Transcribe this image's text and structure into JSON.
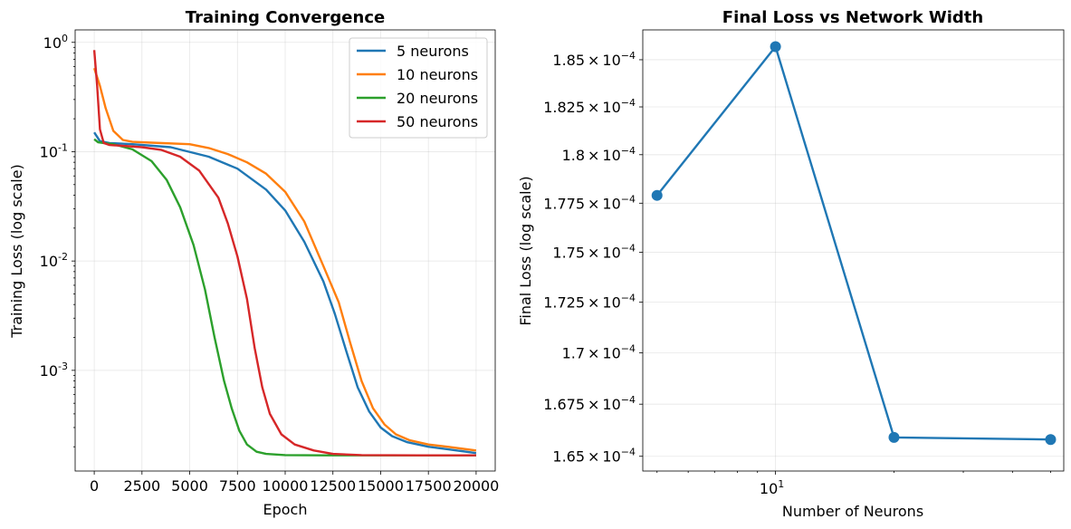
{
  "chart_data": [
    {
      "type": "line",
      "title": "Training Convergence",
      "xlabel": "Epoch",
      "ylabel": "Training Loss (log scale)",
      "xlim": [
        -1000,
        21000
      ],
      "ylim": [
        0.00012,
        1.3
      ],
      "yscale": "log",
      "grid": true,
      "legend_position": "top-right",
      "x_ticks": [
        0,
        2500,
        5000,
        7500,
        10000,
        12500,
        15000,
        17500,
        20000
      ],
      "x_tick_labels": [
        "0",
        "2500",
        "5000",
        "7500",
        "10000",
        "12500",
        "15000",
        "17500",
        "20000"
      ],
      "y_ticks": [
        1,
        0.1,
        0.01,
        0.001
      ],
      "y_tick_labels": [
        {
          "base": "10",
          "exp": "0"
        },
        {
          "base": "10",
          "exp": "-1"
        },
        {
          "base": "10",
          "exp": "-2"
        },
        {
          "base": "10",
          "exp": "-3"
        }
      ],
      "series": [
        {
          "name": "5 neurons",
          "color": "#1f77b4",
          "x": [
            0,
            300,
            800,
            2000,
            4000,
            6000,
            7500,
            9000,
            10000,
            11000,
            12000,
            12600,
            13200,
            13800,
            14400,
            15000,
            15600,
            16400,
            17500,
            18500,
            20000
          ],
          "y": [
            0.15,
            0.125,
            0.12,
            0.117,
            0.11,
            0.09,
            0.07,
            0.045,
            0.029,
            0.015,
            0.0065,
            0.0033,
            0.0015,
            0.0007,
            0.00042,
            0.0003,
            0.00025,
            0.00022,
            0.0002,
            0.00019,
            0.000175
          ]
        },
        {
          "name": "10 neurons",
          "color": "#ff7f0e",
          "x": [
            0,
            300,
            600,
            1000,
            1500,
            2000,
            3000,
            5000,
            6000,
            7000,
            8000,
            9000,
            10000,
            11000,
            12000,
            12800,
            13400,
            14000,
            14600,
            15200,
            15800,
            16500,
            17500,
            18500,
            20000
          ],
          "y": [
            0.58,
            0.4,
            0.25,
            0.155,
            0.128,
            0.123,
            0.121,
            0.117,
            0.108,
            0.095,
            0.08,
            0.063,
            0.043,
            0.023,
            0.009,
            0.0042,
            0.0018,
            0.0008,
            0.00045,
            0.00032,
            0.00026,
            0.00023,
            0.00021,
            0.0002,
            0.000185
          ]
        },
        {
          "name": "20 neurons",
          "color": "#2ca02c",
          "x": [
            0,
            200,
            500,
            1000,
            2000,
            3000,
            3800,
            4500,
            5200,
            5800,
            6300,
            6800,
            7200,
            7600,
            8000,
            8500,
            9000,
            10000,
            12000,
            15000,
            20000
          ],
          "y": [
            0.13,
            0.122,
            0.12,
            0.117,
            0.105,
            0.082,
            0.055,
            0.031,
            0.014,
            0.0055,
            0.002,
            0.0008,
            0.00045,
            0.00028,
            0.00021,
            0.00018,
            0.000172,
            0.000168,
            0.000167,
            0.000167,
            0.000167
          ]
        },
        {
          "name": "50 neurons",
          "color": "#d62728",
          "x": [
            0,
            150,
            300,
            500,
            800,
            1500,
            2500,
            3500,
            4500,
            5500,
            6500,
            7000,
            7500,
            8000,
            8400,
            8800,
            9200,
            9800,
            10500,
            11500,
            12500,
            14000,
            17000,
            20000
          ],
          "y": [
            0.85,
            0.4,
            0.16,
            0.12,
            0.115,
            0.113,
            0.11,
            0.104,
            0.09,
            0.067,
            0.038,
            0.022,
            0.011,
            0.0045,
            0.0016,
            0.0007,
            0.0004,
            0.00026,
            0.00021,
            0.000185,
            0.000172,
            0.000168,
            0.000167,
            0.000167
          ]
        }
      ]
    },
    {
      "type": "line",
      "title": "Final Loss vs Network Width",
      "xlabel": "Number of Neurons",
      "ylabel": "Final Loss (log scale)",
      "xscale": "log",
      "yscale": "log",
      "xlim": [
        4.6,
        54
      ],
      "ylim": [
        0.0001643,
        0.0001866
      ],
      "grid": true,
      "color": "#1f77b4",
      "marker": "circle",
      "x": [
        5,
        10,
        20,
        50
      ],
      "y": [
        0.0001779,
        0.0001857,
        0.0001659,
        0.0001658
      ],
      "x_ticks": [
        10
      ],
      "x_tick_labels": [
        {
          "base": "10",
          "exp": "1"
        }
      ],
      "y_ticks": [
        0.000185,
        0.0001825,
        0.00018,
        0.0001775,
        0.000175,
        0.0001725,
        0.00017,
        0.0001675,
        0.000165
      ],
      "y_tick_labels": [
        {
          "mantissa": "1.85",
          "times": "×",
          "base": "10",
          "exp": "−4"
        },
        {
          "mantissa": "1.825",
          "times": "×",
          "base": "10",
          "exp": "−4"
        },
        {
          "mantissa": "1.8",
          "times": "×",
          "base": "10",
          "exp": "−4"
        },
        {
          "mantissa": "1.775",
          "times": "×",
          "base": "10",
          "exp": "−4"
        },
        {
          "mantissa": "1.75",
          "times": "×",
          "base": "10",
          "exp": "−4"
        },
        {
          "mantissa": "1.725",
          "times": "×",
          "base": "10",
          "exp": "−4"
        },
        {
          "mantissa": "1.7",
          "times": "×",
          "base": "10",
          "exp": "−4"
        },
        {
          "mantissa": "1.675",
          "times": "×",
          "base": "10",
          "exp": "−4"
        },
        {
          "mantissa": "1.65",
          "times": "×",
          "base": "10",
          "exp": "−4"
        }
      ]
    }
  ]
}
